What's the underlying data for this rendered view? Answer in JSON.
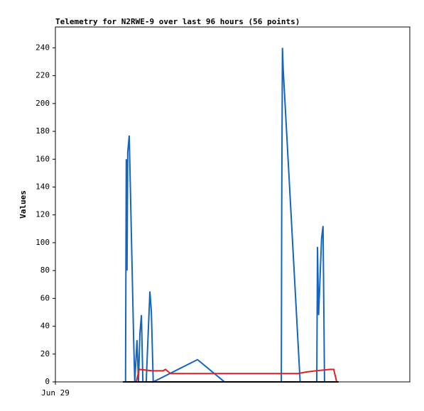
{
  "chart_data": {
    "type": "line",
    "title": "Telemetry for N2RWE-9 over last 96 hours (56 points)",
    "y_label": "Values",
    "xlim": [
      0,
      96
    ],
    "xticks": [
      {
        "value": 0,
        "label": "Jun 29"
      }
    ],
    "ylim": [
      0,
      255
    ],
    "yticks": [
      0,
      20,
      40,
      60,
      80,
      100,
      120,
      140,
      160,
      180,
      200,
      220,
      240
    ],
    "series": [
      {
        "color": "#1565c0",
        "x": [
          19.0,
          19.2,
          19.4,
          19.6,
          20.0,
          21.2,
          21.5,
          22.1,
          22.5,
          22.9,
          23.3,
          23.7,
          24.6,
          25.6,
          26.0,
          26.5,
          38.5,
          45.8,
          61.2,
          61.3,
          61.5,
          61.7,
          66.3,
          70.8,
          71.0,
          71.3,
          72.1,
          72.5,
          72.9
        ],
        "values": [
          0,
          160,
          80,
          165,
          177,
          30,
          0,
          30,
          0,
          35,
          48,
          0,
          0,
          65,
          50,
          0,
          16,
          0,
          0,
          120,
          240,
          225,
          0,
          0,
          97,
          48,
          103,
          112,
          0
        ]
      },
      {
        "color": "#e02020",
        "x": [
          21.9,
          22.7,
          26.3,
          29.2,
          29.8,
          31.2,
          65.8,
          67.7,
          70.6,
          74.4,
          75.4,
          76.2
        ],
        "values": [
          0,
          9,
          8,
          8,
          9,
          6,
          6,
          7,
          8,
          9,
          9,
          0
        ]
      },
      {
        "color": "#000000",
        "x": [
          18.3,
          76.7
        ],
        "values": [
          0,
          0
        ]
      }
    ]
  }
}
